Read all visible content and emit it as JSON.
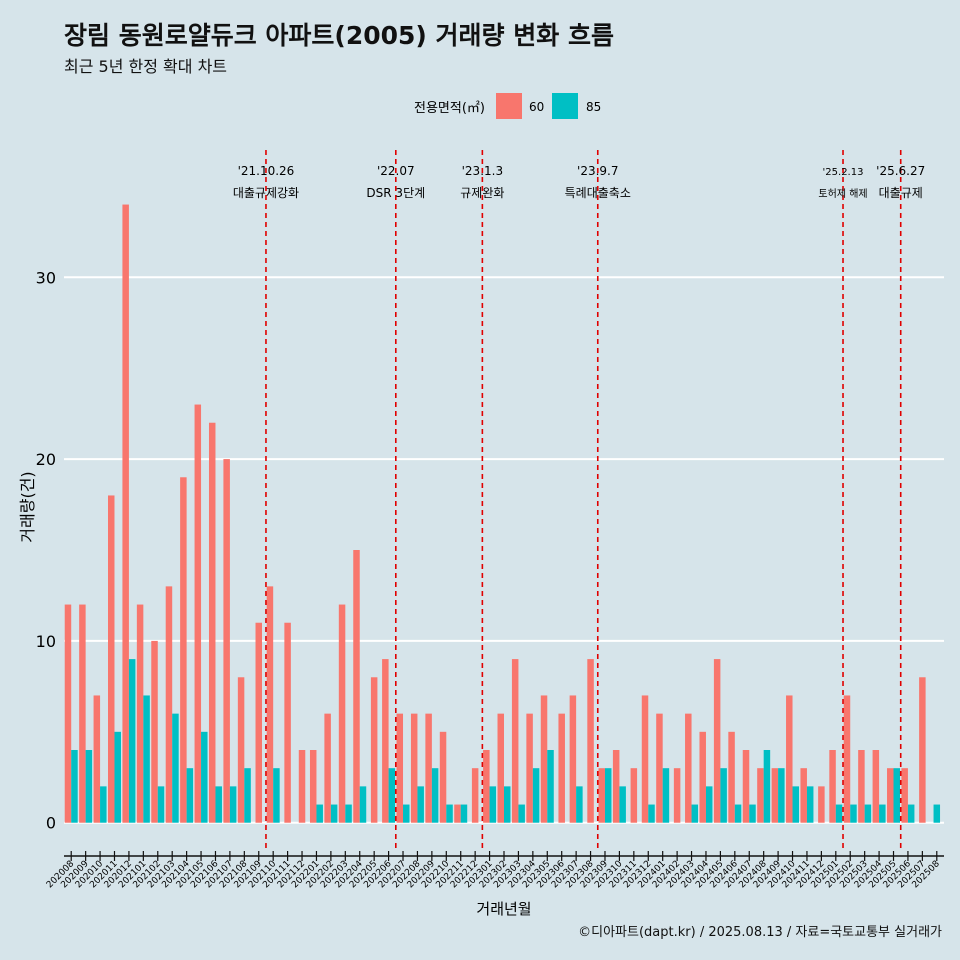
{
  "header": {
    "title": "장림 동원로얄듀크 아파트(2005) 거래량 변화 흐름",
    "subtitle": "최근 5년 한정 확대 차트"
  },
  "caption": "©디아파트(dapt.kr) / 2025.08.13 / 자료=국토교통부 실거래가",
  "colors": {
    "background": "#d6e4ea",
    "grid": "#ffffff",
    "s60": "#f8766d",
    "s85": "#00bfc4",
    "event_line": "#e00000"
  },
  "chart_data": {
    "type": "bar",
    "xlabel": "거래년월",
    "ylabel": "거래량(건)",
    "ylim": [
      -1.5,
      37
    ],
    "yticks": [
      0,
      10,
      20,
      30
    ],
    "grid": true,
    "legend": {
      "title": "전용면적(㎡)",
      "position": "top"
    },
    "categories": [
      "202008",
      "202009",
      "202010",
      "202011",
      "202012",
      "202101",
      "202102",
      "202103",
      "202104",
      "202105",
      "202106",
      "202107",
      "202108",
      "202109",
      "202110",
      "202111",
      "202112",
      "202201",
      "202202",
      "202203",
      "202204",
      "202205",
      "202206",
      "202207",
      "202208",
      "202209",
      "202210",
      "202211",
      "202212",
      "202301",
      "202302",
      "202303",
      "202304",
      "202305",
      "202306",
      "202307",
      "202308",
      "202309",
      "202310",
      "202311",
      "202312",
      "202401",
      "202402",
      "202403",
      "202404",
      "202405",
      "202406",
      "202407",
      "202408",
      "202409",
      "202410",
      "202411",
      "202412",
      "202501",
      "202502",
      "202503",
      "202504",
      "202505",
      "202506",
      "202507",
      "202508"
    ],
    "series": [
      {
        "name": "60",
        "values": [
          12,
          12,
          7,
          18,
          34,
          12,
          10,
          13,
          19,
          23,
          22,
          20,
          8,
          11,
          13,
          11,
          4,
          4,
          6,
          12,
          15,
          8,
          9,
          6,
          6,
          6,
          5,
          1,
          3,
          4,
          6,
          9,
          6,
          7,
          6,
          7,
          9,
          3,
          4,
          3,
          7,
          6,
          3,
          6,
          5,
          9,
          5,
          4,
          3,
          3,
          7,
          3,
          2,
          4,
          7,
          4,
          4,
          3,
          3,
          8,
          0
        ]
      },
      {
        "name": "85",
        "values": [
          4,
          4,
          2,
          5,
          9,
          7,
          2,
          6,
          3,
          5,
          2,
          2,
          3,
          0,
          3,
          0,
          0,
          1,
          1,
          1,
          2,
          0,
          3,
          1,
          2,
          3,
          1,
          1,
          0,
          2,
          2,
          1,
          3,
          4,
          0,
          2,
          0,
          3,
          2,
          0,
          1,
          3,
          0,
          1,
          2,
          3,
          1,
          1,
          4,
          3,
          2,
          2,
          0,
          1,
          1,
          1,
          1,
          3,
          1,
          0,
          1
        ]
      }
    ],
    "events": [
      {
        "date": "'21.10.26",
        "label": "대출규제강화",
        "position": 14.0
      },
      {
        "date": "'22.07",
        "label": "DSR 3단계",
        "position": 23.0
      },
      {
        "date": "'23.1.3",
        "label": "규제완화",
        "position": 29.0
      },
      {
        "date": "'23.9.7",
        "label": "특례대출축소",
        "position": 37.0
      },
      {
        "date": "'25.2.13",
        "label": "토허제 해제",
        "position": 54.0
      },
      {
        "date": "'25.6.27",
        "label": "대출규제",
        "position": 58.0
      }
    ]
  }
}
